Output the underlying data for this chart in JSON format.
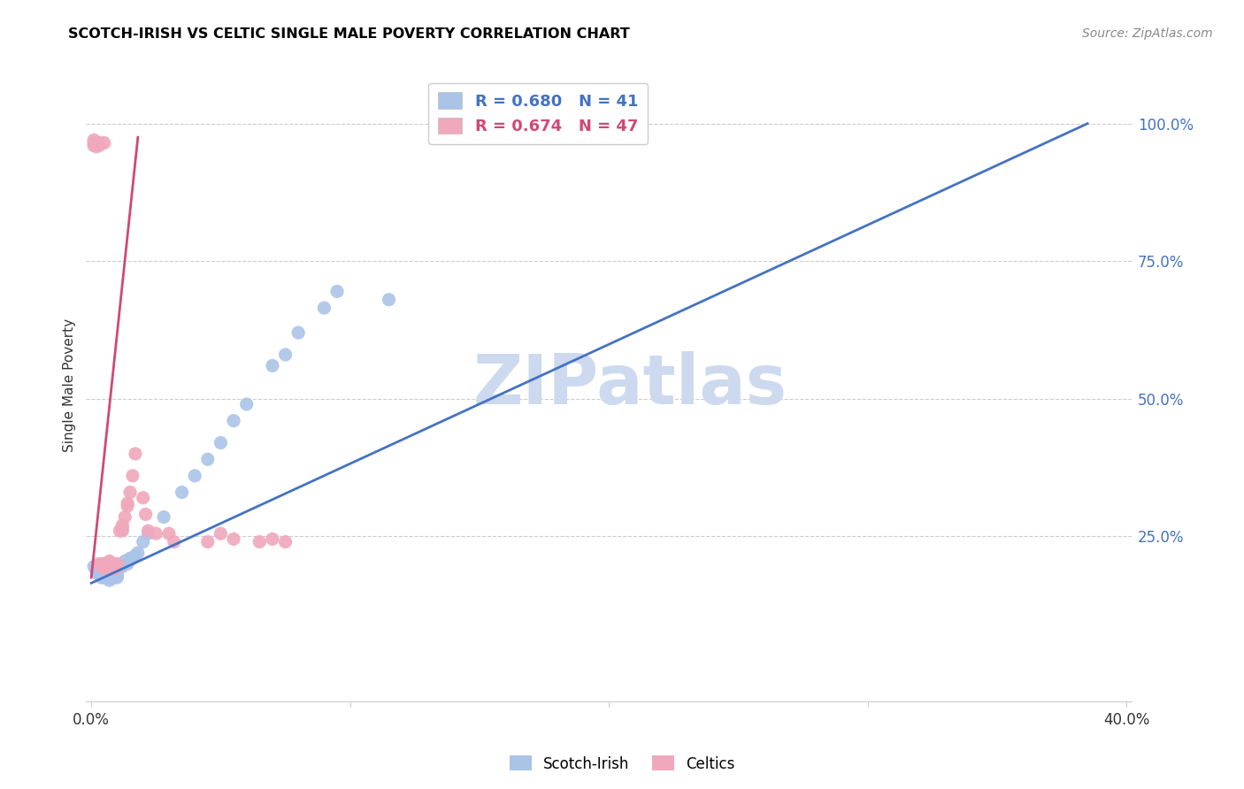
{
  "title": "SCOTCH-IRISH VS CELTIC SINGLE MALE POVERTY CORRELATION CHART",
  "source": "Source: ZipAtlas.com",
  "ylabel": "Single Male Poverty",
  "xlim": [
    0.0,
    0.4
  ],
  "ylim": [
    -0.05,
    1.1
  ],
  "watermark": "ZIPatlas",
  "watermark_color": "#ccd9ee",
  "legend_r1": "R = 0.680",
  "legend_n1": "N = 41",
  "legend_r2": "R = 0.674",
  "legend_n2": "N = 47",
  "scatter_blue_color": "#aac4e8",
  "scatter_pink_color": "#f0a8bc",
  "line_blue_color": "#4472c4",
  "line_pink_color": "#d04878",
  "grid_color": "#cccccc",
  "right_axis_color": "#4472c4",
  "scotch_irish_x": [
    0.001,
    0.002,
    0.002,
    0.003,
    0.003,
    0.004,
    0.004,
    0.005,
    0.005,
    0.006,
    0.006,
    0.007,
    0.007,
    0.008,
    0.008,
    0.009,
    0.01,
    0.01,
    0.011,
    0.012,
    0.013,
    0.014,
    0.015,
    0.016,
    0.017,
    0.018,
    0.02,
    0.022,
    0.028,
    0.035,
    0.04,
    0.045,
    0.05,
    0.055,
    0.06,
    0.07,
    0.075,
    0.08,
    0.09,
    0.095,
    0.115
  ],
  "scotch_irish_y": [
    0.195,
    0.185,
    0.195,
    0.18,
    0.19,
    0.175,
    0.185,
    0.175,
    0.18,
    0.175,
    0.18,
    0.17,
    0.175,
    0.175,
    0.18,
    0.175,
    0.175,
    0.18,
    0.195,
    0.195,
    0.205,
    0.2,
    0.21,
    0.21,
    0.215,
    0.22,
    0.24,
    0.255,
    0.285,
    0.33,
    0.36,
    0.39,
    0.42,
    0.46,
    0.49,
    0.56,
    0.58,
    0.62,
    0.665,
    0.695,
    0.68
  ],
  "celtics_x": [
    0.001,
    0.001,
    0.001,
    0.002,
    0.002,
    0.002,
    0.003,
    0.003,
    0.003,
    0.004,
    0.004,
    0.005,
    0.005,
    0.005,
    0.006,
    0.006,
    0.006,
    0.007,
    0.007,
    0.008,
    0.008,
    0.009,
    0.009,
    0.01,
    0.01,
    0.011,
    0.012,
    0.012,
    0.012,
    0.013,
    0.014,
    0.014,
    0.015,
    0.016,
    0.017,
    0.02,
    0.021,
    0.022,
    0.025,
    0.03,
    0.032,
    0.045,
    0.05,
    0.055,
    0.065,
    0.07,
    0.075
  ],
  "celtics_y": [
    0.97,
    0.965,
    0.96,
    0.965,
    0.96,
    0.958,
    0.965,
    0.96,
    0.2,
    0.2,
    0.195,
    0.965,
    0.2,
    0.195,
    0.2,
    0.195,
    0.19,
    0.205,
    0.195,
    0.2,
    0.195,
    0.2,
    0.19,
    0.2,
    0.195,
    0.26,
    0.27,
    0.265,
    0.26,
    0.285,
    0.31,
    0.305,
    0.33,
    0.36,
    0.4,
    0.32,
    0.29,
    0.26,
    0.255,
    0.255,
    0.24,
    0.24,
    0.255,
    0.245,
    0.24,
    0.245,
    0.24
  ],
  "blue_line_x": [
    0.0,
    0.385
  ],
  "blue_line_y": [
    0.165,
    1.0
  ],
  "pink_line_x": [
    0.0,
    0.018
  ],
  "pink_line_y": [
    0.175,
    0.975
  ]
}
